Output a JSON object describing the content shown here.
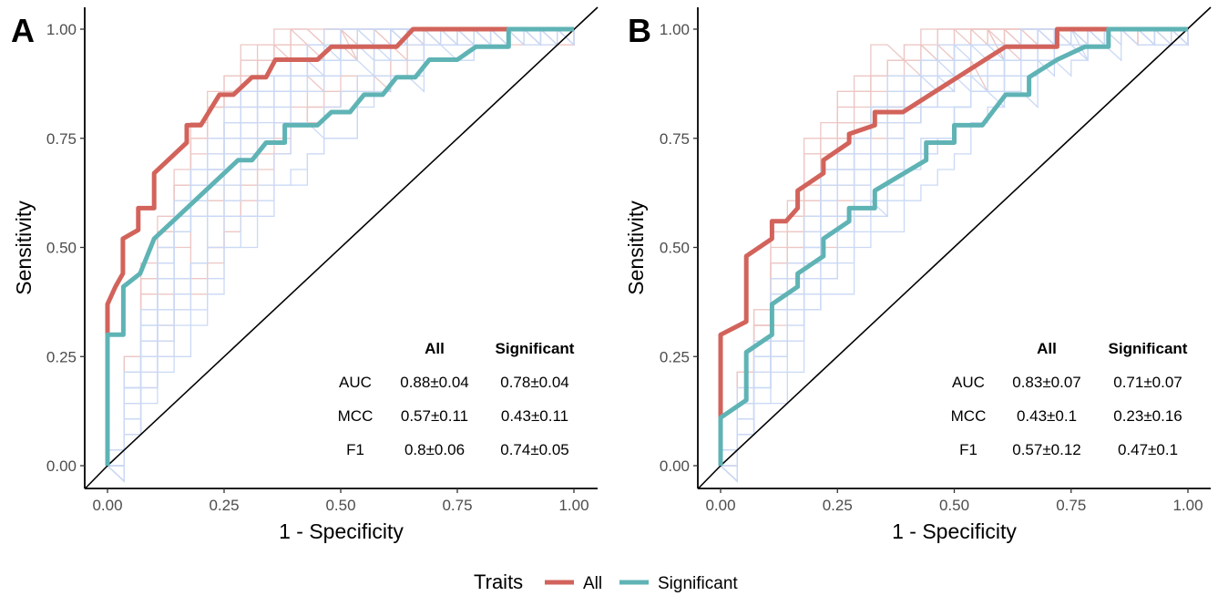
{
  "chart_data": [
    {
      "type": "line",
      "panel": "A",
      "xlabel": "1 - Specificity",
      "ylabel": "Sensitivity",
      "xlim": [
        0,
        1
      ],
      "ylim": [
        0,
        1
      ],
      "x_ticks": [
        "0.00",
        "0.25",
        "0.50",
        "0.75",
        "1.00"
      ],
      "y_ticks": [
        "0.00",
        "0.25",
        "0.50",
        "0.75",
        "1.00"
      ],
      "grid": false,
      "series": [
        {
          "name": "All",
          "color": "#d2635b",
          "points": [
            [
              0,
              0
            ],
            [
              0,
              0.37
            ],
            [
              0.017,
              0.41
            ],
            [
              0.033,
              0.44
            ],
            [
              0.033,
              0.52
            ],
            [
              0.066,
              0.54
            ],
            [
              0.066,
              0.59
            ],
            [
              0.1,
              0.59
            ],
            [
              0.1,
              0.67
            ],
            [
              0.17,
              0.74
            ],
            [
              0.17,
              0.78
            ],
            [
              0.2,
              0.78
            ],
            [
              0.24,
              0.85
            ],
            [
              0.27,
              0.85
            ],
            [
              0.31,
              0.89
            ],
            [
              0.34,
              0.89
            ],
            [
              0.36,
              0.93
            ],
            [
              0.45,
              0.93
            ],
            [
              0.48,
              0.96
            ],
            [
              0.62,
              0.96
            ],
            [
              0.655,
              1.0
            ],
            [
              0.86,
              1.0
            ],
            [
              1,
              1
            ]
          ]
        },
        {
          "name": "Significant",
          "color": "#5fb3b5",
          "points": [
            [
              0,
              0
            ],
            [
              0,
              0.3
            ],
            [
              0.034,
              0.3
            ],
            [
              0.034,
              0.41
            ],
            [
              0.07,
              0.44
            ],
            [
              0.1,
              0.52
            ],
            [
              0.14,
              0.56
            ],
            [
              0.28,
              0.7
            ],
            [
              0.31,
              0.7
            ],
            [
              0.34,
              0.74
            ],
            [
              0.38,
              0.74
            ],
            [
              0.38,
              0.78
            ],
            [
              0.45,
              0.78
            ],
            [
              0.48,
              0.81
            ],
            [
              0.52,
              0.81
            ],
            [
              0.55,
              0.85
            ],
            [
              0.59,
              0.85
            ],
            [
              0.62,
              0.89
            ],
            [
              0.66,
              0.89
            ],
            [
              0.69,
              0.93
            ],
            [
              0.75,
              0.93
            ],
            [
              0.79,
              0.96
            ],
            [
              0.86,
              0.96
            ],
            [
              0.86,
              1.0
            ],
            [
              1,
              1
            ]
          ]
        }
      ],
      "table": {
        "headers": [
          "",
          "All",
          "Significant"
        ],
        "rows": [
          [
            "AUC",
            "0.88±0.04",
            "0.78±0.04"
          ],
          [
            "MCC",
            "0.57±0.11",
            "0.43±0.11"
          ],
          [
            "F1",
            "0.8±0.06",
            "0.74±0.05"
          ]
        ]
      }
    },
    {
      "type": "line",
      "panel": "B",
      "xlabel": "1 - Specificity",
      "ylabel": "Sensitivity",
      "xlim": [
        0,
        1
      ],
      "ylim": [
        0,
        1
      ],
      "x_ticks": [
        "0.00",
        "0.25",
        "0.50",
        "0.75",
        "1.00"
      ],
      "y_ticks": [
        "0.00",
        "0.25",
        "0.50",
        "0.75",
        "1.00"
      ],
      "grid": false,
      "series": [
        {
          "name": "All",
          "color": "#d2635b",
          "points": [
            [
              0,
              0
            ],
            [
              0,
              0.3
            ],
            [
              0.055,
              0.33
            ],
            [
              0.055,
              0.48
            ],
            [
              0.11,
              0.52
            ],
            [
              0.11,
              0.56
            ],
            [
              0.14,
              0.56
            ],
            [
              0.165,
              0.59
            ],
            [
              0.165,
              0.63
            ],
            [
              0.22,
              0.67
            ],
            [
              0.22,
              0.7
            ],
            [
              0.275,
              0.74
            ],
            [
              0.275,
              0.76
            ],
            [
              0.33,
              0.78
            ],
            [
              0.33,
              0.81
            ],
            [
              0.39,
              0.81
            ],
            [
              0.61,
              0.96
            ],
            [
              0.72,
              0.96
            ],
            [
              0.72,
              1.0
            ],
            [
              0.83,
              1.0
            ],
            [
              1,
              1
            ]
          ]
        },
        {
          "name": "Significant",
          "color": "#5fb3b5",
          "points": [
            [
              0,
              0
            ],
            [
              0,
              0.11
            ],
            [
              0.055,
              0.15
            ],
            [
              0.055,
              0.26
            ],
            [
              0.11,
              0.3
            ],
            [
              0.11,
              0.37
            ],
            [
              0.165,
              0.41
            ],
            [
              0.165,
              0.44
            ],
            [
              0.22,
              0.48
            ],
            [
              0.22,
              0.52
            ],
            [
              0.275,
              0.56
            ],
            [
              0.275,
              0.59
            ],
            [
              0.33,
              0.59
            ],
            [
              0.33,
              0.63
            ],
            [
              0.44,
              0.7
            ],
            [
              0.44,
              0.74
            ],
            [
              0.5,
              0.74
            ],
            [
              0.5,
              0.78
            ],
            [
              0.56,
              0.78
            ],
            [
              0.61,
              0.85
            ],
            [
              0.66,
              0.85
            ],
            [
              0.66,
              0.89
            ],
            [
              0.72,
              0.93
            ],
            [
              0.78,
              0.96
            ],
            [
              0.83,
              0.96
            ],
            [
              0.83,
              1.0
            ],
            [
              1,
              1
            ]
          ]
        }
      ],
      "table": {
        "headers": [
          "",
          "All",
          "Significant"
        ],
        "rows": [
          [
            "AUC",
            "0.83±0.07",
            "0.71±0.07"
          ],
          [
            "MCC",
            "0.43±0.1",
            "0.23±0.16"
          ],
          [
            "F1",
            "0.57±0.12",
            "0.47±0.1"
          ]
        ]
      }
    }
  ],
  "legend": {
    "title": "Traits",
    "position": "bottom",
    "items": [
      {
        "label": "All",
        "color": "#d2635b"
      },
      {
        "label": "Significant",
        "color": "#5fb3b5"
      }
    ]
  },
  "background_colors": {
    "all_bootstrap": "#e6b5b2",
    "significant_bootstrap": "#b9cdf2"
  }
}
